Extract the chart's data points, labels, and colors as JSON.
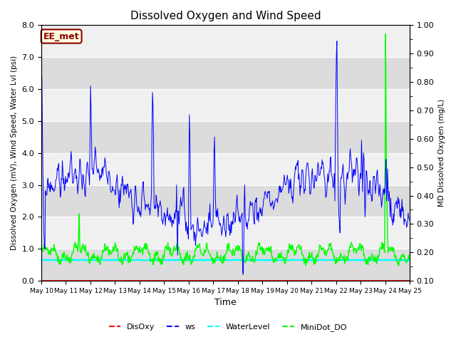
{
  "title": "Dissolved Oxygen and Wind Speed",
  "xlabel": "Time",
  "ylabel_left": "Dissolved Oxygen (mV), Wind Speed, Water Lvl (psi)",
  "ylabel_right": "MD Dissolved Oxygen (mg/L)",
  "ylim_left": [
    0.0,
    8.0
  ],
  "ylim_right": [
    0.1,
    1.0
  ],
  "annotation_text": "EE_met",
  "annotation_bg": "#FFFFE0",
  "annotation_border": "#8B0000",
  "annotation_text_color": "#8B0000",
  "band_colors": [
    "#DCDCDC",
    "#F0F0F0"
  ],
  "disoxy_color": "#FF0000",
  "ws_color": "#0000FF",
  "waterlevel_color": "#00FFFF",
  "minidot_color": "#00FF00",
  "grid_color": "#FFFFFF",
  "xtick_labels": [
    "May 10",
    "May 11",
    "May 12",
    "May 13",
    "May 14",
    "May 15",
    "May 16",
    "May 17",
    "May 18",
    "May 19",
    "May 20",
    "May 21",
    "May 22",
    "May 23",
    "May 24",
    "May 25"
  ],
  "right_ticks": [
    0.1,
    0.2,
    0.3,
    0.4,
    0.5,
    0.6,
    0.7,
    0.8,
    0.9,
    1.0
  ],
  "left_ticks": [
    0.0,
    1.0,
    2.0,
    3.0,
    4.0,
    5.0,
    6.0,
    7.0,
    8.0
  ]
}
